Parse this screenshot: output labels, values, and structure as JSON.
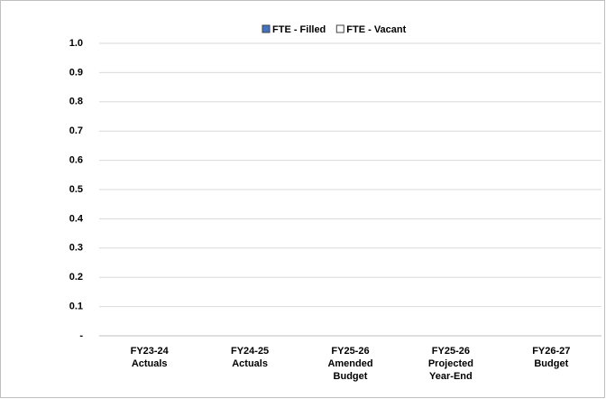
{
  "chart_data": {
    "type": "stacked_bar",
    "categories": [
      "FY23-24\nActuals",
      "FY24-25\nActuals",
      "FY25-26\nAmended\nBudget",
      "FY25-26\nProjected\nYear-End",
      "FY26-27\nBudget"
    ],
    "series": [
      {
        "name": "FTE - Filled",
        "color": "#4472c4",
        "values": [
          0,
          0,
          0,
          0,
          0
        ]
      },
      {
        "name": "FTE - Vacant",
        "color": "#ffffff",
        "values": [
          0,
          0,
          0,
          0,
          0
        ]
      }
    ],
    "ylim": [
      0,
      1
    ],
    "yticks": [
      {
        "value": 0,
        "label": "-"
      },
      0.1,
      0.2,
      0.3,
      0.4,
      0.5,
      0.6,
      0.7,
      0.8,
      0.9,
      {
        "value": 1,
        "label": "1.0"
      }
    ],
    "grid": true,
    "legend": "top"
  }
}
